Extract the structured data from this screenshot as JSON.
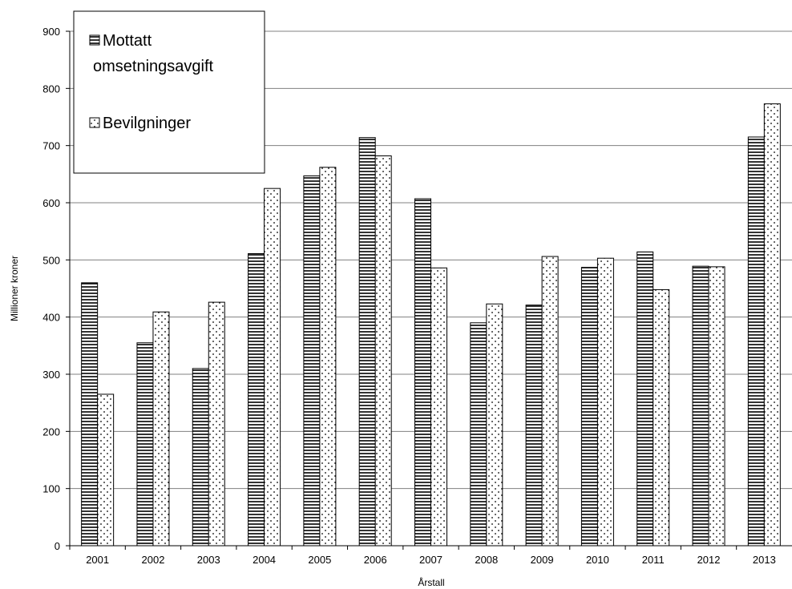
{
  "chart_data": {
    "type": "bar",
    "title": "",
    "xlabel": "Årstall",
    "ylabel": "Millioner kroner",
    "categories": [
      "2001",
      "2002",
      "2003",
      "2004",
      "2005",
      "2006",
      "2007",
      "2008",
      "2009",
      "2010",
      "2011",
      "2012",
      "2013"
    ],
    "ylim": [
      0,
      900
    ],
    "yticks": [
      "0",
      "100",
      "200",
      "300",
      "400",
      "500",
      "600",
      "700",
      "800",
      "900"
    ],
    "grid": true,
    "legend_position": "top-left",
    "series": [
      {
        "name": "Mottatt omsetningsavgift",
        "legend_lines": [
          "Mottatt",
          "omsetningsavgift"
        ],
        "pattern": "horizontal-stripes",
        "values": [
          460,
          355,
          310,
          511,
          647,
          714,
          607,
          390,
          421,
          487,
          514,
          489,
          715
        ]
      },
      {
        "name": "Bevilgninger",
        "legend_lines": [
          "Bevilgninger"
        ],
        "pattern": "dotted",
        "values": [
          265,
          409,
          426,
          625,
          662,
          682,
          486,
          423,
          506,
          503,
          448,
          488,
          773
        ]
      }
    ],
    "colors": {
      "bar_fill": "#ffffff",
      "bar_stroke": "#000000",
      "grid": "#808080"
    }
  }
}
